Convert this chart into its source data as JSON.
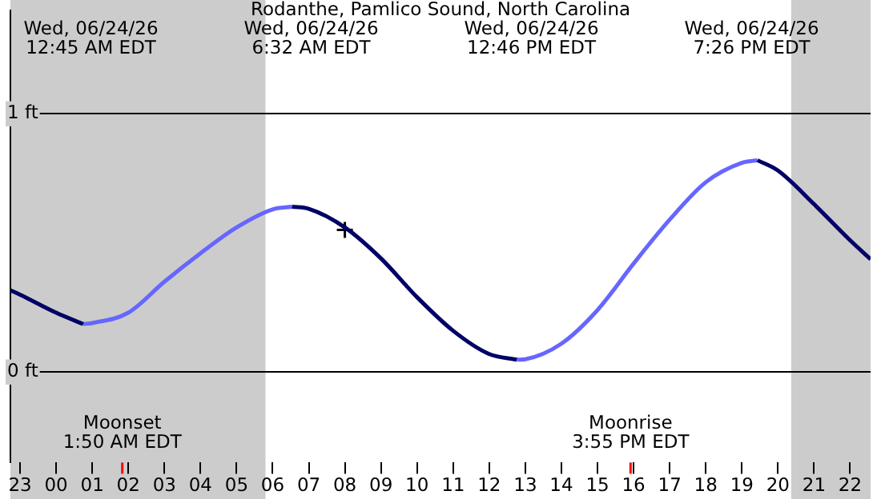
{
  "chart_data": {
    "type": "line",
    "title": "Rodanthe, Pamlico Sound, North Carolina",
    "xlim": [
      "--06-23T22:44",
      "--06-24T22:34"
    ],
    "ylim": [
      -0.35,
      1.4
    ],
    "xticks": [
      {
        "value": "--06-23T23:00",
        "label": "23"
      },
      {
        "value": "--06-24T00:00",
        "label": "00"
      },
      {
        "value": "--06-24T01:00",
        "label": "01"
      },
      {
        "value": "--06-24T02:00",
        "label": "02"
      },
      {
        "value": "--06-24T03:00",
        "label": "03"
      },
      {
        "value": "--06-24T04:00",
        "label": "04"
      },
      {
        "value": "--06-24T05:00",
        "label": "05"
      },
      {
        "value": "--06-24T06:00",
        "label": "06"
      },
      {
        "value": "--06-24T07:00",
        "label": "07"
      },
      {
        "value": "--06-24T08:00",
        "label": "08"
      },
      {
        "value": "--06-24T09:00",
        "label": "09"
      },
      {
        "value": "--06-24T10:00",
        "label": "10"
      },
      {
        "value": "--06-24T11:00",
        "label": "11"
      },
      {
        "value": "--06-24T12:00",
        "label": "12"
      },
      {
        "value": "--06-24T13:00",
        "label": "13"
      },
      {
        "value": "--06-24T14:00",
        "label": "14"
      },
      {
        "value": "--06-24T15:00",
        "label": "15"
      },
      {
        "value": "--06-24T16:00",
        "label": "16"
      },
      {
        "value": "--06-24T17:00",
        "label": "17"
      },
      {
        "value": "--06-24T18:00",
        "label": "18"
      },
      {
        "value": "--06-24T19:00",
        "label": "19"
      },
      {
        "value": "--06-24T20:00",
        "label": "20"
      },
      {
        "value": "--06-24T21:00",
        "label": "21"
      },
      {
        "value": "--06-24T22:00",
        "label": "22"
      }
    ],
    "yticks": [
      {
        "value": 0,
        "label": "0 ft"
      },
      {
        "value": 1,
        "label": "1 ft"
      }
    ],
    "grid": "y",
    "series": [
      {
        "color": "#000066",
        "x": [
          "--06-23T22:44",
          "--06-23T23:00",
          "--06-24T00:00",
          "--06-24T00:45",
          "--06-24T03:36",
          "--06-24T06:32",
          "--06-24T07:00",
          "--06-24T08:00",
          "--06-24T09:00",
          "--06-24T10:00",
          "--06-24T11:00",
          "--06-24T12:00",
          "--06-24T12:46",
          "--06-24T16:00",
          "--06-24T19:26",
          "--06-24T20:00",
          "--06-24T21:00",
          "--06-24T22:00",
          "--06-24T22:34"
        ],
        "values": [
          0.317,
          0.3,
          0.23,
          0.186,
          null,
          0.64,
          0.632,
          0.56,
          0.44,
          0.29,
          0.16,
          0.07,
          0.048,
          null,
          0.82,
          0.78,
          0.65,
          0.51,
          0.437
        ]
      },
      {
        "color": "#6666ff",
        "x": [
          "--06-24T00:45",
          "--06-24T01:00",
          "--06-24T02:00",
          "--06-24T03:00",
          "--06-24T04:00",
          "--06-24T05:00",
          "--06-24T06:00",
          "--06-24T06:32",
          "--06-24T09:36",
          "--06-24T12:46",
          "--06-24T13:00",
          "--06-24T14:00",
          "--06-24T15:00",
          "--06-24T16:00",
          "--06-24T17:00",
          "--06-24T18:00",
          "--06-24T19:00",
          "--06-24T19:26"
        ],
        "values": [
          0.186,
          0.19,
          0.23,
          0.35,
          0.46,
          0.56,
          0.63,
          0.64,
          null,
          0.048,
          0.05,
          0.11,
          0.24,
          0.42,
          0.59,
          0.735,
          0.81,
          0.82
        ]
      },
      {
        "type": "scatter",
        "color": "#000000",
        "marker": "cross",
        "x": [
          "--06-24T08:00"
        ],
        "values": [
          0.55
        ]
      }
    ],
    "bands": [
      {
        "axis": "x",
        "from": "--06-23T22:44",
        "to": "--06-24T05:48",
        "color": "#cccccc"
      },
      {
        "axis": "x",
        "from": "--06-24T20:22",
        "to": "--06-24T22:34",
        "color": "#cccccc"
      }
    ],
    "ref_lines": [
      {
        "axis": "x",
        "value": "--06-24T01:50",
        "label": "Moonset\n1:50 AM EDT",
        "color": "#ff0000"
      },
      {
        "axis": "x",
        "value": "--06-24T15:55",
        "label": "Moonrise\n3:55 PM EDT",
        "color": "#ff0000"
      }
    ],
    "annotations": [
      "Wed, 06/24/26\n12:45 AM EDT",
      "Wed, 06/24/26\n6:32 AM EDT",
      "Wed, 06/24/26\n12:46 PM EDT",
      "Wed, 06/24/26\n7:26 PM EDT"
    ]
  }
}
